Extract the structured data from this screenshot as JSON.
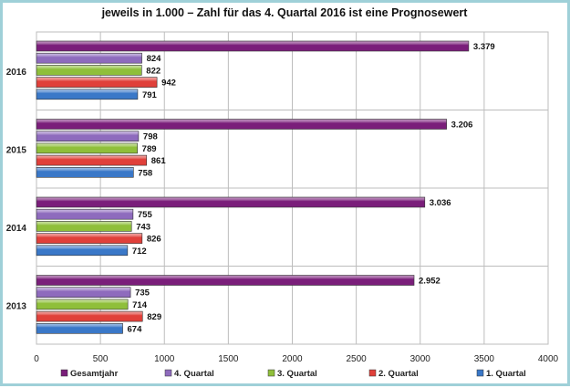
{
  "chart_data": {
    "type": "bar",
    "orientation": "horizontal",
    "title": "jeweils in 1.000 – Zahl für das 4. Quartal 2016 ist eine Prognosewert",
    "xlabel": "",
    "ylabel": "",
    "xlim": [
      0,
      4000
    ],
    "x_ticks": [
      "0",
      "500",
      "1000",
      "1500",
      "2000",
      "2500",
      "3000",
      "3500",
      "4000"
    ],
    "grid": true,
    "legend_position": "bottom",
    "categories": [
      "2016",
      "2015",
      "2014",
      "2013"
    ],
    "series": [
      {
        "name": "Gesamtjahr",
        "color": "#7a1e7a",
        "values": [
          3379,
          3206,
          3036,
          2952
        ],
        "labels": [
          "3.379",
          "3.206",
          "3.036",
          "2.952"
        ]
      },
      {
        "name": "4. Quartal",
        "color": "#8e6bbd",
        "values": [
          824,
          798,
          755,
          735
        ],
        "labels": [
          "824",
          "798",
          "755",
          "735"
        ]
      },
      {
        "name": "3. Quartal",
        "color": "#8fbf3a",
        "values": [
          822,
          789,
          743,
          714
        ],
        "labels": [
          "822",
          "789",
          "743",
          "714"
        ]
      },
      {
        "name": "2. Quartal",
        "color": "#e0403a",
        "values": [
          942,
          861,
          826,
          829
        ],
        "labels": [
          "942",
          "861",
          "826",
          "829"
        ]
      },
      {
        "name": "1. Quartal",
        "color": "#3a78c8",
        "values": [
          791,
          758,
          712,
          674
        ],
        "labels": [
          "791",
          "758",
          "712",
          "674"
        ]
      }
    ]
  }
}
